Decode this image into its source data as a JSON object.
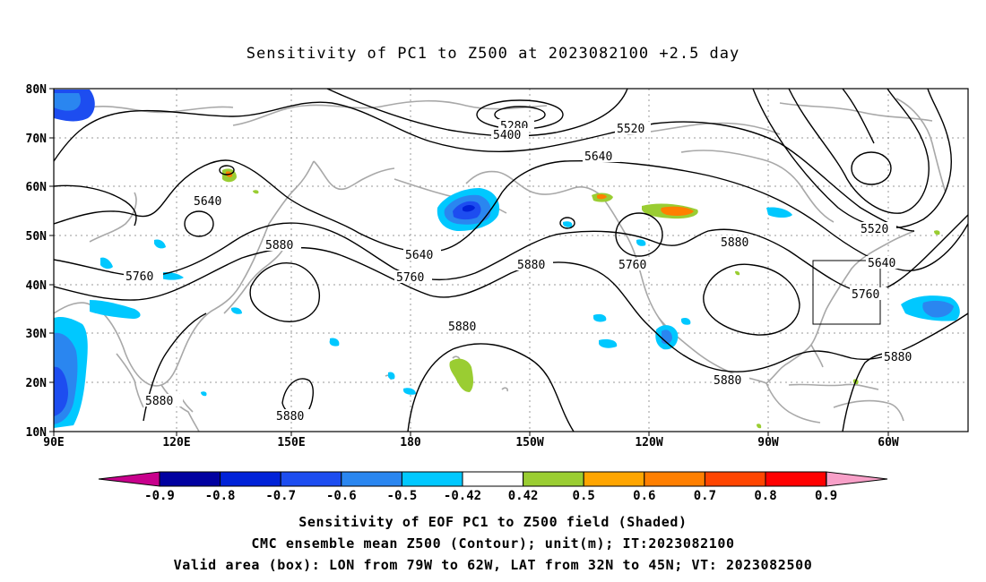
{
  "title": "Sensitivity of PC1 to Z500 at 2023082100 +2.5 day",
  "axes": {
    "lat_ticks": [
      "80N",
      "70N",
      "60N",
      "50N",
      "40N",
      "30N",
      "20N",
      "10N"
    ],
    "lon_ticks": [
      "90E",
      "120E",
      "150E",
      "180",
      "150W",
      "120W",
      "90W",
      "60W"
    ]
  },
  "contour_labels": [
    {
      "text": "5280"
    },
    {
      "text": "5400"
    },
    {
      "text": "5520"
    },
    {
      "text": "5640"
    },
    {
      "text": "5640"
    },
    {
      "text": "5640"
    },
    {
      "text": "5520"
    },
    {
      "text": "5640"
    },
    {
      "text": "5880"
    },
    {
      "text": "5760"
    },
    {
      "text": "5760"
    },
    {
      "text": "5880"
    },
    {
      "text": "5760"
    },
    {
      "text": "5880"
    },
    {
      "text": "5760"
    },
    {
      "text": "5880"
    },
    {
      "text": "5880"
    },
    {
      "text": "5880"
    },
    {
      "text": "5880"
    },
    {
      "text": "5880"
    }
  ],
  "colorbar": {
    "labels": [
      "-0.9",
      "-0.8",
      "-0.7",
      "-0.6",
      "-0.5",
      "-0.42",
      "0.42",
      "0.5",
      "0.6",
      "0.7",
      "0.8",
      "0.9"
    ],
    "colors": [
      "#0000a0",
      "#0022d8",
      "#1d4df0",
      "#2a86f0",
      "#00c8ff",
      "#ffffff",
      "#9acd32",
      "#ffa500",
      "#ff7f00",
      "#ff4500",
      "#ff0000"
    ],
    "low_extend_color": "#c8008c",
    "high_extend_color": "#f8a0c8"
  },
  "footer": {
    "line1": "Sensitivity of EOF PC1 to Z500 field (Shaded)",
    "line2": "CMC ensemble mean Z500 (Contour); unit(m); IT:2023082100",
    "line3": "Valid area (box): LON from 79W to 62W, LAT from 32N to 45N; VT: 2023082500"
  }
}
